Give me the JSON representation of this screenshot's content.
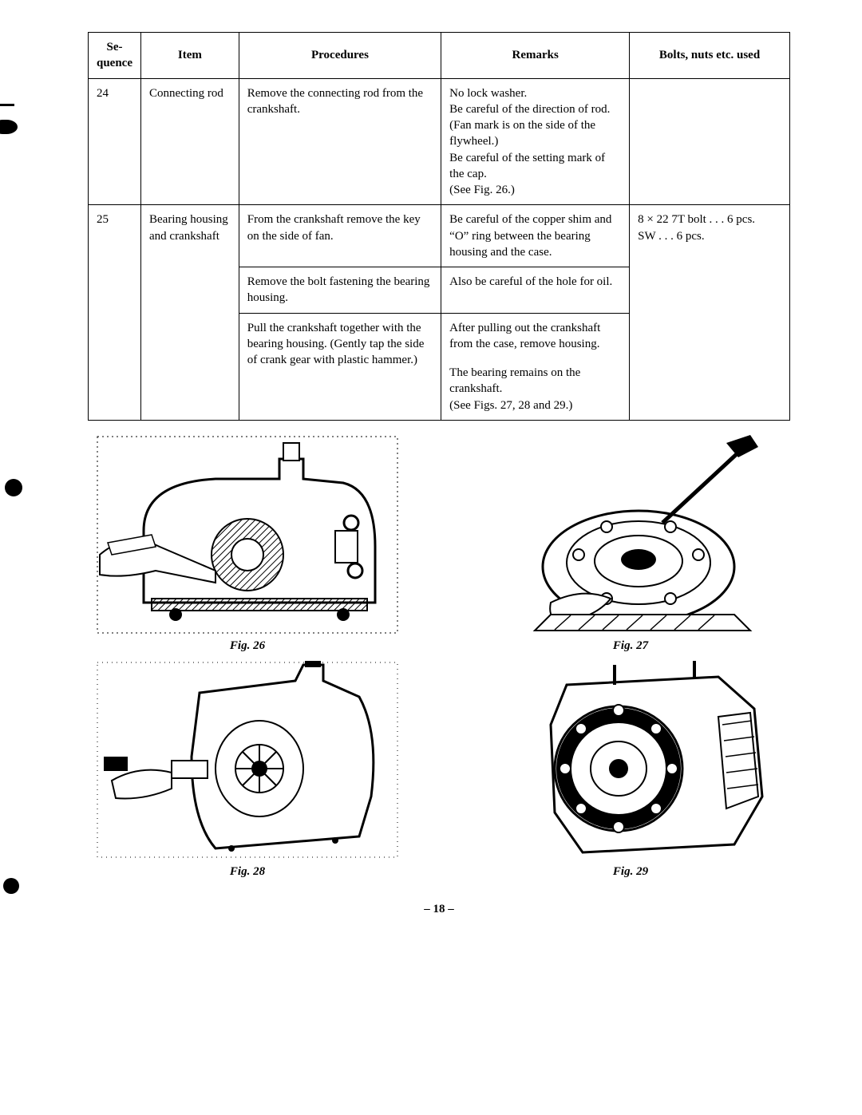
{
  "table": {
    "headers": {
      "sequence": "Se-\nquence",
      "item": "Item",
      "procedures": "Procedures",
      "remarks": "Remarks",
      "bolts": "Bolts, nuts etc. used"
    },
    "rows": [
      {
        "sequence": "24",
        "item": "Connecting rod",
        "procedures": [
          "Remove the connecting rod from the crankshaft."
        ],
        "remarks": [
          "No lock washer.\nBe careful of the direction of rod. (Fan mark is on the side of the flywheel.)\nBe careful of the setting mark of the cap.\n(See Fig. 26.)"
        ],
        "bolts": ""
      },
      {
        "sequence": "25",
        "item": "Bearing housing and crankshaft",
        "procedures": [
          "From the crankshaft remove the key on the side of fan.",
          "Remove the bolt fastening the bearing housing.",
          "Pull the crankshaft together with the bearing housing. (Gently tap the side of crank gear with plastic hammer.)"
        ],
        "remarks": [
          "Be careful of the copper shim and “O” ring between the bearing housing and the case.",
          "Also be careful of the hole for oil.",
          "After pulling out the crankshaft from the case, remove housing.",
          "The bearing remains on the crankshaft.\n(See Figs. 27, 28 and 29.)"
        ],
        "bolts": "8 × 22  7T bolt . . . 6 pcs.\nSW . . . 6 pcs."
      }
    ]
  },
  "figures": {
    "fig26": "Fig. 26",
    "fig27": "Fig. 27",
    "fig28": "Fig. 28",
    "fig29": "Fig. 29"
  },
  "page_number": "– 18 –",
  "colors": {
    "ink": "#000000",
    "paper": "#ffffff"
  }
}
